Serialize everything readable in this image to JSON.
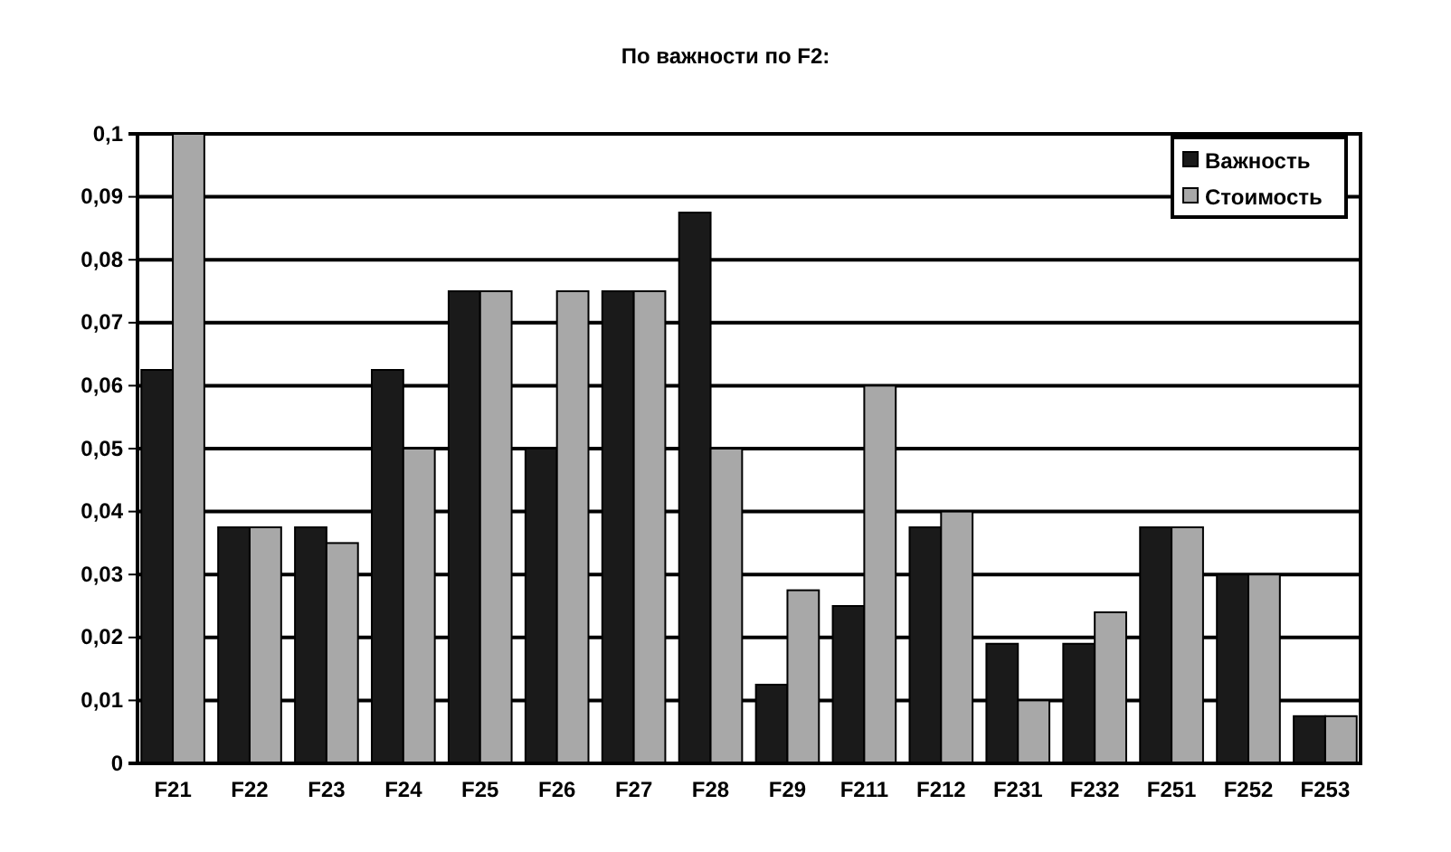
{
  "chart_data": {
    "type": "bar",
    "title": "По важности по F2:",
    "categories": [
      "F21",
      "F22",
      "F23",
      "F24",
      "F25",
      "F26",
      "F27",
      "F28",
      "F29",
      "F211",
      "F212",
      "F231",
      "F232",
      "F251",
      "F252",
      "F253"
    ],
    "series": [
      {
        "name": "Важность",
        "color": "#1a1a1a",
        "values": [
          0.0625,
          0.0375,
          0.0375,
          0.0625,
          0.075,
          0.05,
          0.075,
          0.0875,
          0.0125,
          0.025,
          0.0375,
          0.019,
          0.019,
          0.0375,
          0.03,
          0.0075
        ]
      },
      {
        "name": "Стоимость",
        "color": "#a8a8a8",
        "values": [
          0.1,
          0.0375,
          0.035,
          0.05,
          0.075,
          0.075,
          0.075,
          0.05,
          0.0275,
          0.06,
          0.04,
          0.01,
          0.024,
          0.0375,
          0.03,
          0.0075
        ]
      }
    ],
    "ylim": [
      0,
      0.1
    ],
    "yticks": [
      0,
      {
        "value": 0.01,
        "label": "0,01"
      },
      {
        "value": 0.02,
        "label": "0,02"
      },
      {
        "value": 0.03,
        "label": "0,03"
      },
      {
        "value": 0.04,
        "label": "0,04"
      },
      {
        "value": 0.05,
        "label": "0,05"
      },
      {
        "value": 0.06,
        "label": "0,06"
      },
      {
        "value": 0.07,
        "label": "0,07"
      },
      {
        "value": 0.08,
        "label": "0,08"
      },
      {
        "value": 0.09,
        "label": "0,09"
      },
      {
        "value": 0.1,
        "label": "0,1"
      }
    ],
    "grid": "y",
    "legend": "top right"
  }
}
